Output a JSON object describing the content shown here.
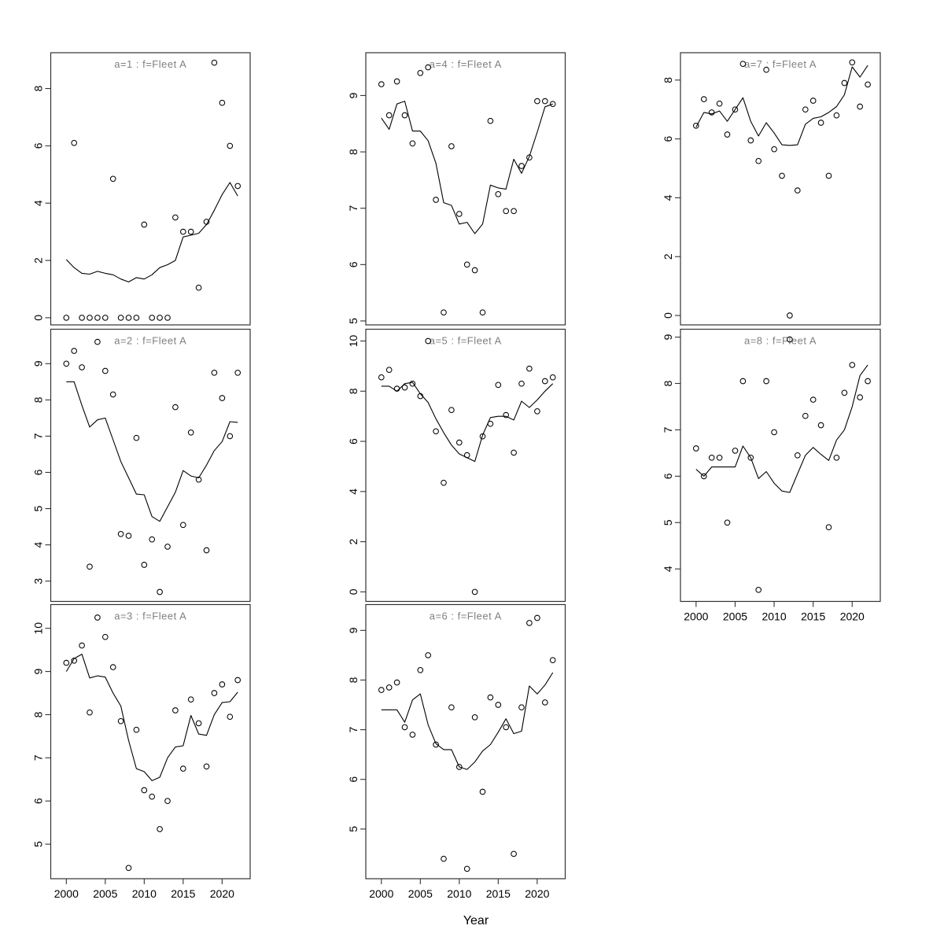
{
  "figure": {
    "xlabel": "Year",
    "background": "#ffffff",
    "colors": {
      "title": "#808080",
      "line": "#000000",
      "marker": "#000000",
      "axis": "#333333"
    },
    "xlim": [
      1998.0,
      2023.6
    ],
    "x_ticks": [
      2000,
      2005,
      2010,
      2015,
      2020
    ],
    "years": [
      2000,
      2001,
      2002,
      2003,
      2004,
      2005,
      2006,
      2007,
      2008,
      2009,
      2010,
      2011,
      2012,
      2013,
      2014,
      2015,
      2016,
      2017,
      2018,
      2019,
      2020,
      2021,
      2022
    ]
  },
  "chart_data": [
    {
      "type": "scatter",
      "title": "a=1  :  f=Fleet A",
      "panel_label": "a=1",
      "fleet": "f=Fleet A",
      "grid": {
        "col": 0,
        "row": 0
      },
      "ylim": [
        -0.25,
        9.25
      ],
      "yticks": [
        0,
        2,
        4,
        6,
        8
      ],
      "points": [
        0,
        6.1,
        0,
        0,
        0,
        0,
        4.85,
        0,
        0,
        0,
        3.25,
        0,
        0,
        0,
        3.5,
        3.0,
        3.0,
        1.05,
        3.35,
        8.9,
        7.5,
        6.0,
        4.6
      ],
      "fit": [
        2.03,
        1.75,
        1.55,
        1.52,
        1.62,
        1.55,
        1.5,
        1.35,
        1.25,
        1.4,
        1.35,
        1.5,
        1.75,
        1.85,
        2.0,
        2.82,
        2.88,
        2.95,
        3.25,
        3.75,
        4.3,
        4.72,
        4.25
      ]
    },
    {
      "type": "scatter",
      "title": "a=2  :  f=Fleet A",
      "panel_label": "a=2",
      "fleet": "f=Fleet A",
      "grid": {
        "col": 0,
        "row": 1
      },
      "ylim": [
        2.44,
        9.95
      ],
      "yticks": [
        3,
        4,
        5,
        6,
        7,
        8,
        9
      ],
      "points": [
        9.0,
        9.35,
        8.9,
        3.4,
        9.6,
        8.8,
        8.15,
        4.3,
        4.25,
        6.95,
        3.45,
        4.15,
        2.7,
        3.95,
        7.8,
        4.55,
        7.1,
        5.8,
        3.85,
        8.75,
        8.05,
        7.0,
        8.75
      ],
      "fit": [
        8.5,
        8.5,
        7.85,
        7.25,
        7.45,
        7.5,
        6.9,
        6.3,
        5.85,
        5.4,
        5.38,
        4.78,
        4.65,
        5.05,
        5.45,
        6.05,
        5.9,
        5.85,
        6.2,
        6.6,
        6.85,
        7.4,
        7.38
      ]
    },
    {
      "type": "scatter",
      "title": "a=3  :  f=Fleet A",
      "panel_label": "a=3",
      "fleet": "f=Fleet A",
      "grid": {
        "col": 0,
        "row": 2
      },
      "ylim": [
        4.2,
        10.55
      ],
      "yticks": [
        5,
        6,
        7,
        8,
        9,
        10
      ],
      "points": [
        9.2,
        9.25,
        9.6,
        8.05,
        10.25,
        9.8,
        9.1,
        7.85,
        4.45,
        7.65,
        6.25,
        6.1,
        5.35,
        6.0,
        8.1,
        6.75,
        8.35,
        7.8,
        6.8,
        8.5,
        8.7,
        7.95,
        8.8
      ],
      "fit": [
        9.0,
        9.3,
        9.4,
        8.85,
        8.9,
        8.87,
        8.5,
        8.2,
        7.4,
        6.75,
        6.68,
        6.47,
        6.55,
        7.0,
        7.25,
        7.28,
        7.98,
        7.55,
        7.52,
        8.0,
        8.28,
        8.3,
        8.52
      ]
    },
    {
      "type": "scatter",
      "title": "a=4  :  f=Fleet A",
      "panel_label": "a=4",
      "fleet": "f=Fleet A",
      "grid": {
        "col": 1,
        "row": 0
      },
      "ylim": [
        4.93,
        9.76
      ],
      "yticks": [
        5,
        6,
        7,
        8,
        9
      ],
      "points": [
        9.2,
        8.65,
        9.25,
        8.65,
        8.15,
        9.4,
        9.5,
        7.15,
        5.15,
        8.1,
        6.9,
        6.0,
        5.9,
        5.15,
        8.55,
        7.25,
        6.95,
        6.95,
        7.75,
        7.9,
        8.9,
        8.9,
        8.85
      ],
      "fit": [
        8.6,
        8.4,
        8.85,
        8.9,
        8.37,
        8.37,
        8.2,
        7.8,
        7.1,
        7.05,
        6.72,
        6.75,
        6.55,
        6.72,
        7.41,
        7.36,
        7.34,
        7.87,
        7.62,
        7.92,
        8.35,
        8.8,
        8.85
      ]
    },
    {
      "type": "scatter",
      "title": "a=5  :  f=Fleet A",
      "panel_label": "a=5",
      "fleet": "f=Fleet A",
      "grid": {
        "col": 1,
        "row": 1
      },
      "ylim": [
        -0.38,
        10.47
      ],
      "yticks": [
        0,
        2,
        4,
        6,
        8,
        10
      ],
      "points": [
        8.55,
        8.85,
        8.1,
        8.15,
        8.3,
        7.8,
        10.0,
        6.4,
        4.35,
        7.25,
        5.95,
        5.45,
        0.0,
        6.2,
        6.7,
        8.25,
        7.05,
        5.55,
        8.3,
        8.9,
        7.2,
        8.4,
        8.55
      ],
      "fit": [
        8.2,
        8.2,
        8.0,
        8.3,
        8.35,
        7.9,
        7.55,
        6.9,
        6.35,
        5.85,
        5.5,
        5.35,
        5.2,
        6.25,
        6.95,
        7.0,
        7.0,
        6.85,
        7.6,
        7.35,
        7.65,
        8.0,
        8.3
      ]
    },
    {
      "type": "scatter",
      "title": "a=6  :  f=Fleet A",
      "panel_label": "a=6",
      "fleet": "f=Fleet A",
      "grid": {
        "col": 1,
        "row": 2
      },
      "ylim": [
        4.0,
        9.52
      ],
      "yticks": [
        5,
        6,
        7,
        8,
        9
      ],
      "points": [
        7.8,
        7.85,
        7.95,
        7.05,
        6.9,
        8.2,
        8.5,
        6.7,
        4.4,
        7.45,
        6.25,
        4.2,
        7.25,
        5.75,
        7.65,
        7.5,
        7.05,
        4.5,
        7.45,
        9.15,
        9.25,
        7.55,
        8.4
      ],
      "fit": [
        7.4,
        7.4,
        7.4,
        7.15,
        7.6,
        7.72,
        7.1,
        6.72,
        6.6,
        6.6,
        6.25,
        6.2,
        6.35,
        6.57,
        6.7,
        6.95,
        7.22,
        6.92,
        6.97,
        7.88,
        7.72,
        7.9,
        8.15
      ]
    },
    {
      "type": "scatter",
      "title": "a=7  :  f=Fleet A",
      "panel_label": "a=7",
      "fleet": "f=Fleet A",
      "grid": {
        "col": 2,
        "row": 0
      },
      "ylim": [
        -0.32,
        8.93
      ],
      "yticks": [
        0,
        2,
        4,
        6,
        8
      ],
      "points": [
        6.45,
        7.35,
        6.9,
        7.2,
        6.15,
        7.0,
        8.55,
        5.95,
        5.25,
        8.35,
        5.65,
        4.75,
        0.0,
        4.25,
        7.0,
        7.3,
        6.55,
        4.75,
        6.8,
        7.9,
        8.6,
        7.1,
        7.85
      ],
      "fit": [
        6.4,
        6.9,
        6.85,
        6.95,
        6.6,
        7.0,
        7.4,
        6.6,
        6.1,
        6.55,
        6.2,
        5.8,
        5.78,
        5.8,
        6.5,
        6.7,
        6.75,
        6.9,
        7.1,
        7.5,
        8.45,
        8.1,
        8.5
      ]
    },
    {
      "type": "scatter",
      "title": "a=8  :  f=Fleet A",
      "panel_label": "a=8",
      "fleet": "f=Fleet A",
      "grid": {
        "col": 2,
        "row": 1
      },
      "ylim": [
        3.3,
        9.17
      ],
      "yticks": [
        4,
        5,
        6,
        7,
        8,
        9
      ],
      "points": [
        6.6,
        6.0,
        6.4,
        6.4,
        5.0,
        6.55,
        8.05,
        6.4,
        3.55,
        8.05,
        6.95,
        null,
        8.95,
        6.45,
        7.3,
        7.65,
        7.1,
        4.9,
        6.4,
        7.8,
        8.4,
        7.7,
        8.05
      ],
      "fit": [
        6.15,
        6.0,
        6.2,
        6.2,
        6.2,
        6.2,
        6.65,
        6.4,
        5.95,
        6.1,
        5.85,
        5.68,
        5.65,
        6.05,
        6.45,
        6.62,
        6.47,
        6.34,
        6.78,
        7.0,
        7.5,
        8.17,
        8.4
      ]
    }
  ]
}
